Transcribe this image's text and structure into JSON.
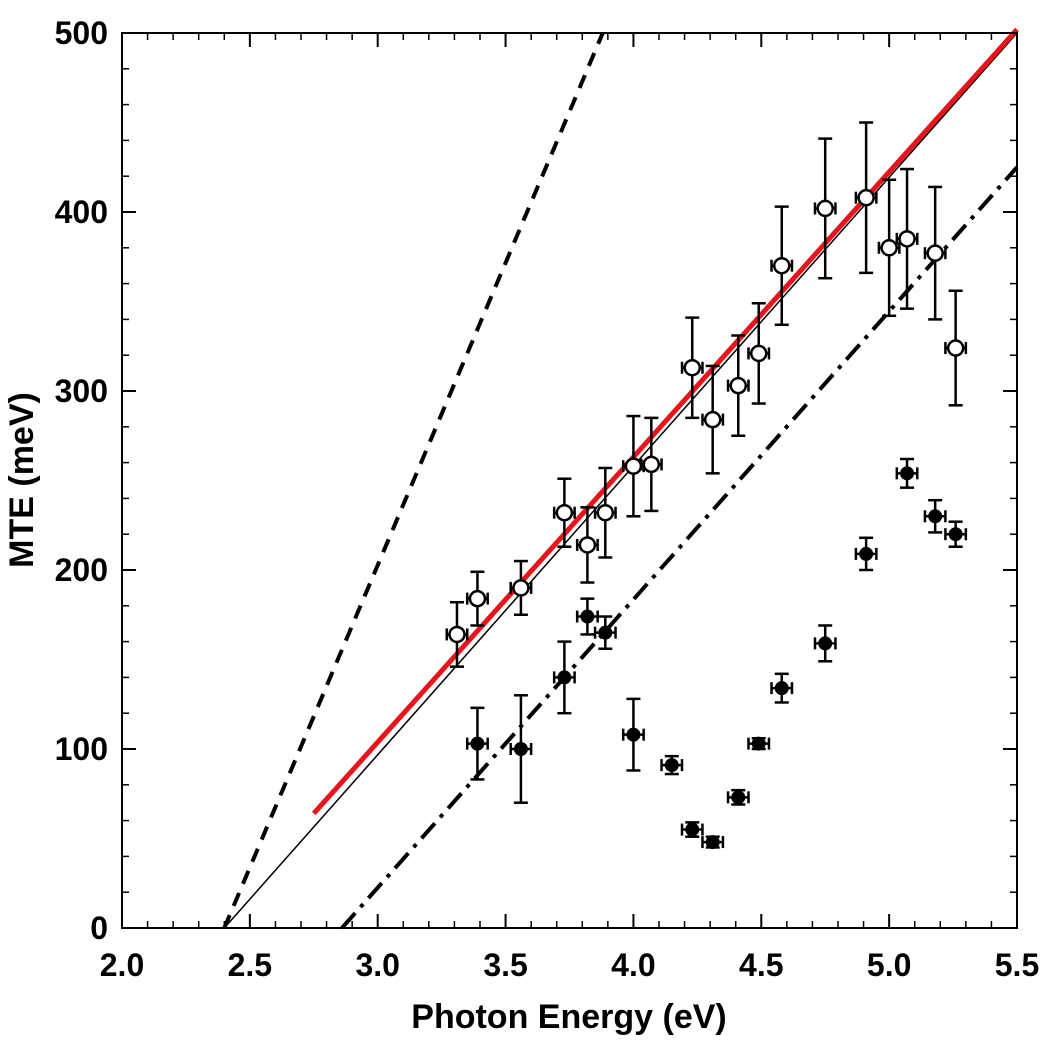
{
  "chart_data": {
    "type": "scatter",
    "title": "",
    "xlabel": "Photon Energy (eV)",
    "ylabel": "MTE (meV)",
    "xlim": [
      2.0,
      5.5
    ],
    "ylim": [
      0,
      500
    ],
    "xticks": [
      2.0,
      2.5,
      3.0,
      3.5,
      4.0,
      4.5,
      5.0,
      5.5
    ],
    "xtick_labels": [
      "2.0",
      "2.5",
      "3.0",
      "3.5",
      "4.0",
      "4.5",
      "5.0",
      "5.5"
    ],
    "yticks": [
      0,
      100,
      200,
      300,
      400,
      500
    ],
    "ytick_labels": [
      "0",
      "100",
      "200",
      "300",
      "400",
      "500"
    ],
    "grid": false,
    "legend": "none",
    "x_error": 0.04,
    "series": [
      {
        "marker": "open-circle",
        "color": "#000000",
        "points": [
          {
            "x": 3.31,
            "y": 164,
            "yerr": 18
          },
          {
            "x": 3.39,
            "y": 184,
            "yerr": 15
          },
          {
            "x": 3.56,
            "y": 190,
            "yerr": 15
          },
          {
            "x": 3.73,
            "y": 232,
            "yerr": 19
          },
          {
            "x": 3.82,
            "y": 214,
            "yerr": 21
          },
          {
            "x": 3.89,
            "y": 232,
            "yerr": 25
          },
          {
            "x": 4.0,
            "y": 258,
            "yerr": 28
          },
          {
            "x": 4.07,
            "y": 259,
            "yerr": 26
          },
          {
            "x": 4.23,
            "y": 313,
            "yerr": 28
          },
          {
            "x": 4.31,
            "y": 284,
            "yerr": 30
          },
          {
            "x": 4.41,
            "y": 303,
            "yerr": 28
          },
          {
            "x": 4.49,
            "y": 321,
            "yerr": 28
          },
          {
            "x": 4.58,
            "y": 370,
            "yerr": 33
          },
          {
            "x": 4.75,
            "y": 402,
            "yerr": 39
          },
          {
            "x": 4.91,
            "y": 408,
            "yerr": 42
          },
          {
            "x": 5.0,
            "y": 380,
            "yerr": 38
          },
          {
            "x": 5.07,
            "y": 385,
            "yerr": 39
          },
          {
            "x": 5.18,
            "y": 377,
            "yerr": 37
          },
          {
            "x": 5.26,
            "y": 324,
            "yerr": 32
          }
        ]
      },
      {
        "marker": "filled-circle",
        "color": "#000000",
        "points": [
          {
            "x": 3.39,
            "y": 103,
            "yerr": 20
          },
          {
            "x": 3.56,
            "y": 100,
            "yerr": 30
          },
          {
            "x": 3.73,
            "y": 140,
            "yerr": 20
          },
          {
            "x": 3.82,
            "y": 174,
            "yerr": 10
          },
          {
            "x": 3.89,
            "y": 165,
            "yerr": 9
          },
          {
            "x": 4.0,
            "y": 108,
            "yerr": 20
          },
          {
            "x": 4.15,
            "y": 91,
            "yerr": 5
          },
          {
            "x": 4.23,
            "y": 55,
            "yerr": 4
          },
          {
            "x": 4.31,
            "y": 48,
            "yerr": 3
          },
          {
            "x": 4.41,
            "y": 73,
            "yerr": 4
          },
          {
            "x": 4.49,
            "y": 103,
            "yerr": 3
          },
          {
            "x": 4.58,
            "y": 134,
            "yerr": 8
          },
          {
            "x": 4.75,
            "y": 159,
            "yerr": 10
          },
          {
            "x": 4.91,
            "y": 209,
            "yerr": 9
          },
          {
            "x": 5.07,
            "y": 254,
            "yerr": 8
          },
          {
            "x": 5.18,
            "y": 230,
            "yerr": 9
          },
          {
            "x": 5.26,
            "y": 220,
            "yerr": 7
          }
        ]
      }
    ],
    "lines": [
      {
        "style": "dashed",
        "color": "#000000",
        "points": [
          [
            2.4,
            0
          ],
          [
            3.88,
            500
          ]
        ]
      },
      {
        "style": "solid-thin",
        "color": "#000000",
        "points": [
          [
            2.4,
            0
          ],
          [
            5.5,
            500
          ]
        ]
      },
      {
        "style": "dash-dot",
        "color": "#000000",
        "points": [
          [
            2.86,
            0
          ],
          [
            5.5,
            425
          ]
        ]
      },
      {
        "style": "solid-thick",
        "color": "#e8141c",
        "points": [
          [
            2.75,
            64
          ],
          [
            5.5,
            502
          ]
        ]
      }
    ]
  }
}
